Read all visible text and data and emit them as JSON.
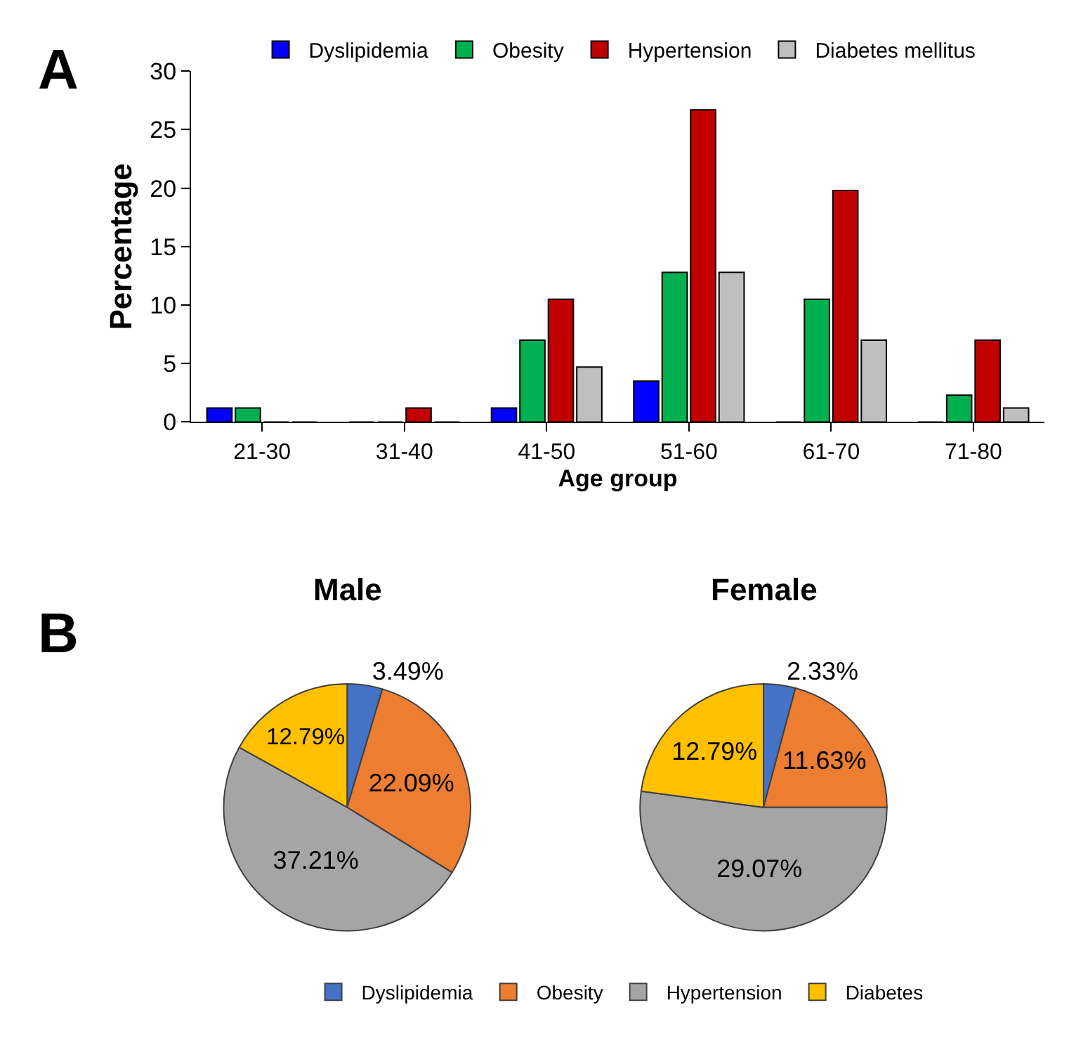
{
  "chart_data": [
    {
      "type": "bar",
      "annotations": [
        "A"
      ],
      "xlabel": "Age group",
      "ylabel": "Percentage",
      "categories": [
        "21-30",
        "31-40",
        "41-50",
        "51-60",
        "61-70",
        "71-80"
      ],
      "series": [
        {
          "name": "Dyslipidemia",
          "color": "#0000ff",
          "values": [
            1.2,
            0,
            1.2,
            3.5,
            0,
            0
          ]
        },
        {
          "name": "Obesity",
          "color": "#00b050",
          "values": [
            1.2,
            0,
            7.0,
            12.8,
            10.5,
            2.3
          ]
        },
        {
          "name": "Hypertension",
          "color": "#c00000",
          "values": [
            0,
            1.2,
            10.5,
            26.7,
            19.8,
            7.0
          ]
        },
        {
          "name": "Diabetes mellitus",
          "color": "#bfbfbf",
          "values": [
            0,
            0,
            4.7,
            12.8,
            7.0,
            1.2
          ]
        }
      ],
      "ylim": [
        0,
        30
      ],
      "yticks": [
        0,
        5,
        10,
        15,
        20,
        25,
        30
      ],
      "legend": "top"
    },
    {
      "type": "pie",
      "title": "Male",
      "annotations": [
        "B"
      ],
      "categories": [
        "Dyslipidemia",
        "Obesity",
        "Hypertension",
        "Diabetes"
      ],
      "values": [
        3.49,
        22.09,
        37.21,
        12.79
      ],
      "colors": [
        "#4472c4",
        "#ed7d31",
        "#a5a5a5",
        "#ffc000"
      ],
      "value_labels": [
        "3.49%",
        "22.09%",
        "37.21%",
        "12.79%"
      ],
      "legend": "bottom"
    },
    {
      "type": "pie",
      "title": "Female",
      "categories": [
        null,
        null,
        null,
        null
      ],
      "values": [
        2.33,
        11.63,
        29.07,
        12.79
      ],
      "colors": [
        "#4472c4",
        "#ed7d31",
        "#a5a5a5",
        "#ffc000"
      ],
      "value_labels": [
        "2.33%",
        "11.63%",
        "29.07%",
        "12.79%"
      ]
    }
  ]
}
